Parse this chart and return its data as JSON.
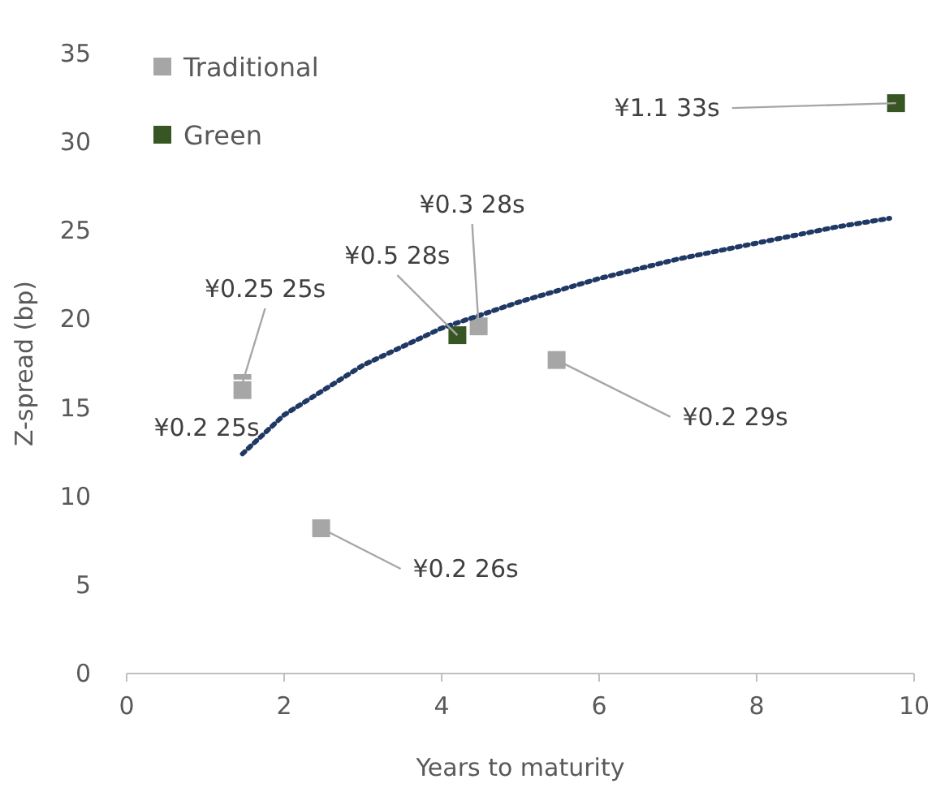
{
  "chart_data": {
    "type": "scatter",
    "xlabel": "Years to maturity",
    "ylabel": "Z-spread (bp)",
    "xlim": [
      0,
      10
    ],
    "xticks": [
      0,
      2,
      4,
      6,
      8,
      10
    ],
    "ylim": [
      0,
      35
    ],
    "yticks": [
      0,
      5,
      10,
      15,
      20,
      25,
      30,
      35
    ],
    "grid": false,
    "legend": "top left",
    "marker": "square",
    "series": [
      {
        "name": "Traditional",
        "color": "#a6a6a6",
        "x": [
          1.47,
          1.47,
          2.47,
          4.47,
          5.46
        ],
        "values": [
          16.4,
          16.0,
          8.2,
          19.6,
          17.7
        ]
      },
      {
        "name": "Green",
        "color": "#375623",
        "x": [
          4.2,
          9.77
        ],
        "values": [
          19.1,
          32.2
        ]
      },
      {
        "type": "line",
        "color": "#203864",
        "line_style": "dotted",
        "marker": "none",
        "x": [
          1.47,
          2,
          3,
          4,
          5,
          6,
          7,
          8,
          9,
          9.69
        ],
        "values": [
          12.4,
          14.6,
          17.4,
          19.5,
          21.0,
          22.3,
          23.4,
          24.3,
          25.2,
          25.7
        ]
      }
    ],
    "annotations": [
      {
        "text": "¥0.25 25s",
        "x": 1.47,
        "y": 16.4
      },
      {
        "text": "¥0.2 25s",
        "x": 1.47,
        "y": 16.0
      },
      {
        "text": "¥0.2 26s",
        "x": 2.47,
        "y": 8.2
      },
      {
        "text": "¥0.5 28s",
        "x": 4.2,
        "y": 19.1
      },
      {
        "text": "¥0.3 28s",
        "x": 4.47,
        "y": 19.6
      },
      {
        "text": "¥0.2 29s",
        "x": 5.46,
        "y": 17.7
      },
      {
        "text": "¥1.1 33s",
        "x": 9.77,
        "y": 32.2
      }
    ]
  }
}
